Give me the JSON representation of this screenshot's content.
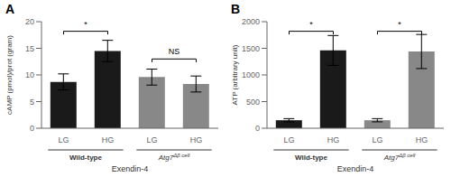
{
  "chart_data": [
    {
      "type": "bar",
      "title": "A",
      "y_label": "cAMP (pmol)/prot (gram)",
      "x_label": "Exendin-4",
      "categories": [
        "LG",
        "HG",
        "LG",
        "HG"
      ],
      "values": [
        8.7,
        14.5,
        9.6,
        8.3
      ],
      "errors": [
        1.5,
        2.0,
        1.5,
        1.5
      ],
      "colors": [
        "#1a1a1a",
        "#1a1a1a",
        "#888888",
        "#888888"
      ],
      "ylim": [
        0,
        20
      ],
      "yticks": [
        0,
        5,
        10,
        15,
        20
      ],
      "significance": [
        {
          "from": 0,
          "to": 1,
          "y": 18.2,
          "label": "*"
        },
        {
          "from": 2,
          "to": 3,
          "y": 13.0,
          "label": "NS"
        }
      ],
      "groups": [
        {
          "label": "Wild-type",
          "members": [
            0,
            1
          ]
        },
        {
          "label": "Atg7",
          "superscript": "Δβ cell",
          "members": [
            2,
            3
          ]
        }
      ]
    },
    {
      "type": "bar",
      "title": "B",
      "y_label": "ATP (arbitrary unit)",
      "x_label": "Exendin-4",
      "categories": [
        "LG",
        "HG",
        "LG",
        "HG"
      ],
      "values": [
        150,
        1460,
        150,
        1440
      ],
      "errors": [
        30,
        280,
        30,
        320
      ],
      "colors": [
        "#1a1a1a",
        "#1a1a1a",
        "#888888",
        "#888888"
      ],
      "ylim": [
        0,
        2000
      ],
      "yticks": [
        0,
        500,
        1000,
        1500,
        2000
      ],
      "significance": [
        {
          "from": 0,
          "to": 1,
          "y": 1820,
          "label": "*"
        },
        {
          "from": 2,
          "to": 3,
          "y": 1820,
          "label": "*"
        }
      ],
      "groups": [
        {
          "label": "Wild-type",
          "members": [
            0,
            1
          ]
        },
        {
          "label": "Atg7",
          "superscript": "Δβ cell",
          "members": [
            2,
            3
          ]
        }
      ]
    }
  ]
}
